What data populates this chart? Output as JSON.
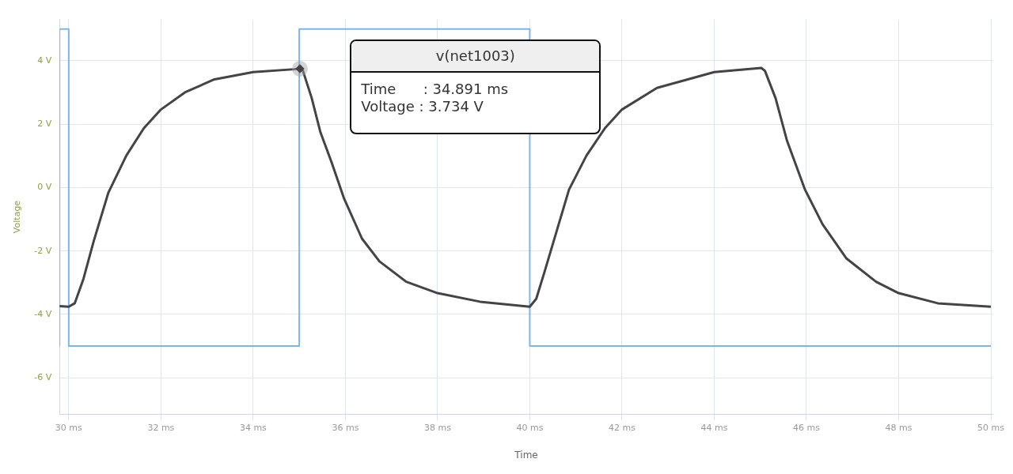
{
  "chart_data": {
    "type": "line",
    "xlabel": "Time",
    "ylabel": "Voltage",
    "xlim": [
      29.8,
      50.05
    ],
    "ylim": [
      -7.15,
      5.3
    ],
    "xticks": [
      {
        "value": 30,
        "label": "30 ms"
      },
      {
        "value": 32,
        "label": "32 ms"
      },
      {
        "value": 34,
        "label": "34 ms"
      },
      {
        "value": 36,
        "label": "36 ms"
      },
      {
        "value": 38,
        "label": "38 ms"
      },
      {
        "value": 40,
        "label": "40 ms"
      },
      {
        "value": 42,
        "label": "42 ms"
      },
      {
        "value": 44,
        "label": "44 ms"
      },
      {
        "value": 46,
        "label": "46 ms"
      },
      {
        "value": 48,
        "label": "48 ms"
      },
      {
        "value": 50,
        "label": "50 ms"
      }
    ],
    "yticks": [
      {
        "value": -6,
        "label": "-6 V"
      },
      {
        "value": -4,
        "label": "-4 V"
      },
      {
        "value": -2,
        "label": "-2 V"
      },
      {
        "value": 0,
        "label": "0 V"
      },
      {
        "value": 2,
        "label": "2 V"
      },
      {
        "value": 4,
        "label": "4 V"
      }
    ],
    "grid": true,
    "marker": "none",
    "line_style": "solid",
    "legend": false,
    "series": [
      {
        "type": "step",
        "color": "#7cb5ec",
        "x": [
          29.8,
          30,
          35,
          40,
          45,
          50
        ],
        "values": [
          -5,
          5,
          -5,
          5,
          -5,
          -5
        ]
      },
      {
        "type": "line",
        "color": "#434348",
        "x": [
          29.8,
          30.0,
          30.13,
          30.32,
          30.54,
          30.86,
          31.25,
          31.63,
          32.0,
          32.52,
          33.16,
          34.0,
          34.89,
          35.02,
          35.08,
          35.27,
          35.46,
          35.7,
          35.97,
          36.36,
          36.74,
          37.32,
          38.0,
          38.92,
          40.0,
          40.14,
          40.33,
          40.59,
          40.85,
          41.23,
          41.63,
          42.0,
          42.76,
          44.0,
          45.02,
          45.1,
          45.33,
          45.58,
          45.97,
          46.35,
          46.87,
          47.51,
          48.0,
          48.85,
          50.0
        ],
        "values": [
          -3.74,
          -3.76,
          -3.65,
          -2.88,
          -1.7,
          -0.16,
          1.01,
          1.87,
          2.46,
          3.0,
          3.41,
          3.64,
          3.73,
          3.75,
          3.68,
          2.82,
          1.74,
          0.8,
          -0.34,
          -1.61,
          -2.33,
          -2.97,
          -3.33,
          -3.6,
          -3.76,
          -3.51,
          -2.61,
          -1.34,
          -0.07,
          1.01,
          1.87,
          2.46,
          3.14,
          3.64,
          3.77,
          3.68,
          2.82,
          1.47,
          -0.07,
          -1.16,
          -2.24,
          -2.97,
          -3.33,
          -3.65,
          -3.76
        ]
      }
    ],
    "annotations": [
      "v(net1003)",
      "Time      : 34.891 ms",
      "Voltage : 3.734 V"
    ]
  }
}
